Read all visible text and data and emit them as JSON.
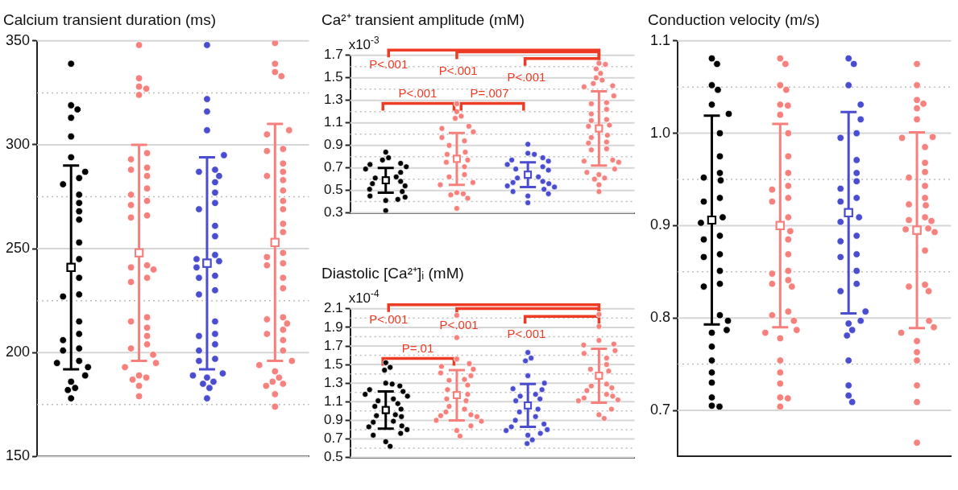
{
  "chart_data": [
    {
      "type": "scatter",
      "title": "Calcium transient duration (ms)",
      "categories": [
        null,
        null,
        null,
        null
      ],
      "ylim": [
        150,
        350
      ],
      "yticks": [
        150,
        {
          "value": 175,
          "label": null
        },
        200,
        {
          "value": 225,
          "label": null
        },
        250,
        {
          "value": 275,
          "label": null
        },
        300,
        {
          "value": 325,
          "label": null
        },
        350
      ],
      "grid": "y",
      "legend": false,
      "marker": "circle",
      "series": [
        {
          "colors": [
            "#000000",
            "#f7807c",
            "#4a4dd0",
            "#f4827f"
          ],
          "values": [
            339,
            348,
            348,
            349
          ]
        },
        {
          "colors": [
            "#000000",
            "#f7807c",
            "#4a4dd0",
            "#f4827f"
          ],
          "values": [
            319,
            332,
            322,
            339
          ]
        },
        {
          "colors": [
            "#000000",
            "#f7807c",
            "#4a4dd0",
            "#f4827f"
          ],
          "values": [
            317,
            328,
            316,
            335
          ]
        },
        {
          "colors": [
            "#000000",
            "#f7807c",
            "#4a4dd0",
            "#f4827f"
          ],
          "values": [
            313,
            327,
            307,
            333
          ]
        },
        {
          "colors": [
            "#000000",
            "#f7807c",
            "#4a4dd0",
            "#f4827f"
          ],
          "values": [
            304,
            324,
            295,
            307
          ]
        },
        {
          "colors": [
            "#000000",
            "#f7807c",
            "#4a4dd0",
            "#f4827f"
          ],
          "values": [
            294,
            296,
            288,
            305
          ]
        },
        {
          "colors": [
            "#000000",
            "#f7807c",
            "#4a4dd0",
            "#f4827f"
          ],
          "values": [
            287,
            293,
            287,
            298
          ]
        },
        {
          "colors": [
            "#000000",
            "#f7807c",
            "#4a4dd0",
            "#f4827f"
          ],
          "values": [
            284,
            289,
            285,
            297
          ]
        },
        {
          "colors": [
            "#000000",
            "#f7807c",
            "#4a4dd0",
            "#f4827f"
          ],
          "values": [
            281,
            288,
            282,
            291
          ]
        },
        {
          "colors": [
            "#000000",
            "#f7807c",
            "#4a4dd0",
            "#f4827f"
          ],
          "values": [
            276,
            285,
            277,
            287
          ]
        },
        {
          "colors": [
            "#000000",
            "#f7807c",
            "#4a4dd0",
            "#f4827f"
          ],
          "values": [
            272,
            279,
            272,
            285
          ]
        },
        {
          "colors": [
            "#000000",
            "#f7807c",
            "#4a4dd0",
            "#f4827f"
          ],
          "values": [
            268,
            276,
            269,
            283
          ]
        },
        {
          "colors": [
            "#000000",
            "#f7807c",
            "#4a4dd0",
            "#f4827f"
          ],
          "values": [
            264,
            273,
            261,
            278
          ]
        },
        {
          "colors": [
            "#000000",
            "#f7807c",
            "#4a4dd0",
            "#f4827f"
          ],
          "values": [
            253,
            271,
            256,
            273
          ]
        },
        {
          "colors": [
            "#000000",
            "#f7807c",
            "#4a4dd0",
            "#f4827f"
          ],
          "values": [
            245,
            266,
            247,
            269
          ]
        },
        {
          "colors": [
            "#000000",
            "#f7807c",
            "#4a4dd0",
            "#f4827f"
          ],
          "values": [
            null,
            265,
            245,
            262
          ]
        },
        {
          "colors": [
            "#000000",
            "#f7807c",
            "#4a4dd0",
            "#f4827f"
          ],
          "values": [
            236,
            null,
            244,
            258
          ]
        },
        {
          "colors": [
            "#000000",
            "#f7807c",
            "#4a4dd0",
            "#f4827f"
          ],
          "values": [
            228,
            242,
            241,
            248
          ]
        },
        {
          "colors": [
            "#000000",
            "#f7807c",
            "#4a4dd0",
            "#f4827f"
          ],
          "values": [
            227,
            241,
            237,
            246
          ]
        },
        {
          "colors": [
            "#000000",
            "#f7807c",
            "#4a4dd0",
            "#f4827f"
          ],
          "values": [
            215,
            240,
            236,
            243
          ]
        },
        {
          "colors": [
            "#000000",
            "#f7807c",
            "#4a4dd0",
            "#f4827f"
          ],
          "values": [
            209,
            236,
            230,
            242
          ]
        },
        {
          "colors": [
            "#000000",
            "#f7807c",
            "#4a4dd0",
            "#f4827f"
          ],
          "values": [
            206,
            234,
            228,
            236
          ]
        },
        {
          "colors": [
            "#000000",
            "#f7807c",
            "#4a4dd0",
            "#f4827f"
          ],
          "values": [
            202,
            217,
            215,
            231
          ]
        },
        {
          "colors": [
            "#000000",
            "#f7807c",
            "#4a4dd0",
            "#f4827f"
          ],
          "values": [
            201,
            215,
            209,
            217
          ]
        },
        {
          "colors": [
            "#000000",
            "#f7807c",
            "#4a4dd0",
            "#f4827f"
          ],
          "values": [
            196,
            212,
            208,
            216
          ]
        },
        {
          "colors": [
            "#000000",
            "#f7807c",
            "#4a4dd0",
            "#f4827f"
          ],
          "values": [
            195,
            208,
            204,
            214
          ]
        },
        {
          "colors": [
            "#000000",
            "#f7807c",
            "#4a4dd0",
            "#f4827f"
          ],
          "values": [
            193,
            204,
            201,
            211
          ]
        },
        {
          "colors": [
            "#000000",
            "#f7807c",
            "#4a4dd0",
            "#f4827f"
          ],
          "values": [
            189,
            202,
            197,
            209
          ]
        },
        {
          "colors": [
            "#000000",
            "#f7807c",
            "#4a4dd0",
            "#f4827f"
          ],
          "values": [
            186,
            199,
            196,
            206
          ]
        },
        {
          "colors": [
            "#000000",
            "#f7807c",
            "#4a4dd0",
            "#f4827f"
          ],
          "values": [
            183,
            195,
            190,
            201
          ]
        },
        {
          "colors": [
            "#000000",
            "#f7807c",
            "#4a4dd0",
            "#f4827f"
          ],
          "values": [
            182,
            193,
            189,
            196
          ]
        },
        {
          "colors": [
            "#000000",
            "#f7807c",
            "#4a4dd0",
            "#f4827f"
          ],
          "values": [
            178,
            189,
            188,
            194
          ]
        },
        {
          "colors": [
            "#000000",
            "#f7807c",
            "#4a4dd0",
            "#f4827f"
          ],
          "values": [
            null,
            188,
            186,
            191
          ]
        },
        {
          "colors": [
            "#000000",
            "#f7807c",
            "#4a4dd0",
            "#f4827f"
          ],
          "values": [
            null,
            187,
            185,
            188
          ]
        },
        {
          "colors": [
            "#000000",
            "#f7807c",
            "#4a4dd0",
            "#f4827f"
          ],
          "values": [
            null,
            184,
            183,
            186
          ]
        },
        {
          "colors": [
            "#000000",
            "#f7807c",
            "#4a4dd0",
            "#f4827f"
          ],
          "values": [
            null,
            179,
            178,
            185
          ]
        },
        {
          "colors": [
            "#000000",
            "#f7807c",
            "#4a4dd0",
            "#f4827f"
          ],
          "values": [
            null,
            null,
            null,
            184
          ]
        },
        {
          "colors": [
            "#000000",
            "#f7807c",
            "#4a4dd0",
            "#f4827f"
          ],
          "values": [
            null,
            null,
            null,
            180
          ]
        },
        {
          "colors": [
            "#000000",
            "#f7807c",
            "#4a4dd0",
            "#f4827f"
          ],
          "values": [
            null,
            null,
            null,
            174
          ]
        },
        {
          "colors": [
            "#000000",
            "#f7807c",
            "#4a4dd0",
            "#f7807c"
          ],
          "marker": "square",
          "values": [
            241,
            248,
            243,
            253
          ],
          "errors": [
            49,
            52,
            51,
            57
          ]
        }
      ]
    },
    {
      "type": "scatter",
      "title": "Ca²⁺ transient amplitude (mM)",
      "ylabel": "x10$^{-3}$",
      "categories": [
        null,
        null,
        null,
        null
      ],
      "ylim": [
        0.3,
        1.7
      ],
      "yticks": [
        0.3,
        {
          "value": 0.4,
          "label": null
        },
        0.5,
        {
          "value": 0.6,
          "label": null
        },
        0.7,
        {
          "value": 0.8,
          "label": null
        },
        0.9,
        {
          "value": 1.0,
          "label": null
        },
        1.1,
        {
          "value": 1.2,
          "label": null
        },
        1.3,
        {
          "value": 1.4,
          "label": null
        },
        1.5,
        {
          "value": 1.6,
          "label": null
        },
        1.7
      ],
      "grid": "y",
      "legend": false,
      "marker": "circle",
      "annotations": [
        "P<.001",
        "P<.001",
        "P<.001",
        "P<.001",
        "P=.007"
      ],
      "series": [
        {
          "colors": [
            "#000000",
            "#f7807c",
            "#4a4dd0",
            "#f4827f"
          ],
          "values": [
            0.84,
            1.27,
            0.91,
            1.63
          ]
        },
        {
          "colors": [
            "#000000",
            "#f7807c",
            "#4a4dd0",
            "#f4827f"
          ],
          "values": [
            0.79,
            1.2,
            0.83,
            1.62
          ]
        },
        {
          "colors": [
            "#000000",
            "#f7807c",
            "#4a4dd0",
            "#f4827f"
          ],
          "values": [
            0.77,
            1.16,
            0.82,
            1.58
          ]
        },
        {
          "colors": [
            "#000000",
            "#f7807c",
            "#4a4dd0",
            "#f4827f"
          ],
          "values": [
            0.74,
            1.14,
            0.79,
            1.54
          ]
        },
        {
          "colors": [
            "#000000",
            "#f7807c",
            "#4a4dd0",
            "#f4827f"
          ],
          "values": [
            0.73,
            1.07,
            0.77,
            1.5
          ]
        },
        {
          "colors": [
            "#000000",
            "#f7807c",
            "#4a4dd0",
            "#f4827f"
          ],
          "values": [
            0.71,
            1.05,
            0.76,
            1.48
          ]
        },
        {
          "colors": [
            "#000000",
            "#f7807c",
            "#4a4dd0",
            "#f4827f"
          ],
          "values": [
            0.69,
            1.02,
            0.73,
            1.45
          ]
        },
        {
          "colors": [
            "#000000",
            "#f7807c",
            "#4a4dd0",
            "#f4827f"
          ],
          "values": [
            0.66,
            0.97,
            0.71,
            1.43
          ]
        },
        {
          "colors": [
            "#000000",
            "#f7807c",
            "#4a4dd0",
            "#f4827f"
          ],
          "values": [
            0.62,
            0.94,
            0.69,
            1.42
          ]
        },
        {
          "colors": [
            "#000000",
            "#f7807c",
            "#4a4dd0",
            "#f4827f"
          ],
          "values": [
            0.61,
            0.9,
            0.68,
            1.34
          ]
        },
        {
          "colors": [
            "#000000",
            "#f7807c",
            "#4a4dd0",
            "#f4827f"
          ],
          "values": [
            0.58,
            0.84,
            null,
            1.28
          ]
        },
        {
          "colors": [
            "#000000",
            "#f7807c",
            "#4a4dd0",
            "#f4827f"
          ],
          "values": [
            0.56,
            0.82,
            0.62,
            1.27
          ]
        },
        {
          "colors": [
            "#000000",
            "#f7807c",
            "#4a4dd0",
            "#f4827f"
          ],
          "values": [
            0.54,
            0.77,
            0.61,
            1.22
          ]
        },
        {
          "colors": [
            "#000000",
            "#f7807c",
            "#4a4dd0",
            "#f4827f"
          ],
          "values": [
            0.51,
            0.75,
            0.58,
            1.18
          ]
        },
        {
          "colors": [
            "#000000",
            "#f7807c",
            "#4a4dd0",
            "#f4827f"
          ],
          "values": [
            0.49,
            0.71,
            0.57,
            1.13
          ]
        },
        {
          "colors": [
            "#000000",
            "#f7807c",
            "#4a4dd0",
            "#f4827f"
          ],
          "values": [
            0.45,
            0.64,
            0.56,
            1.12
          ]
        },
        {
          "colors": [
            "#000000",
            "#f7807c",
            "#4a4dd0",
            "#f4827f"
          ],
          "values": [
            0.44,
            0.62,
            0.54,
            1.08
          ]
        },
        {
          "colors": [
            "#000000",
            "#f7807c",
            "#4a4dd0",
            "#f4827f"
          ],
          "values": [
            0.42,
            0.57,
            0.53,
            1.07
          ]
        },
        {
          "colors": [
            "#000000",
            "#f7807c",
            "#4a4dd0",
            "#f4827f"
          ],
          "values": [
            0.41,
            0.55,
            0.51,
            0.99
          ]
        },
        {
          "colors": [
            "#000000",
            "#f7807c",
            "#4a4dd0",
            "#f4827f"
          ],
          "values": [
            0.32,
            0.48,
            0.49,
            0.97
          ]
        },
        {
          "colors": [
            "#000000",
            "#f7807c",
            "#4a4dd0",
            "#f4827f"
          ],
          "values": [
            null,
            0.47,
            0.47,
            0.93
          ]
        },
        {
          "colors": [
            "#000000",
            "#f7807c",
            "#4a4dd0",
            "#f4827f"
          ],
          "values": [
            null,
            0.46,
            0.45,
            0.92
          ]
        },
        {
          "colors": [
            "#000000",
            "#f7807c",
            "#4a4dd0",
            "#f4827f"
          ],
          "values": [
            null,
            0.43,
            0.39,
            0.87
          ]
        },
        {
          "colors": [
            "#000000",
            "#f7807c",
            "#4a4dd0",
            "#f4827f"
          ],
          "values": [
            null,
            0.34,
            null,
            0.86
          ]
        },
        {
          "colors": [
            "#000000",
            "#f7807c",
            "#4a4dd0",
            "#f4827f"
          ],
          "values": [
            null,
            null,
            null,
            0.77
          ]
        },
        {
          "colors": [
            "#000000",
            "#f7807c",
            "#4a4dd0",
            "#f4827f"
          ],
          "values": [
            null,
            null,
            null,
            0.76
          ]
        },
        {
          "colors": [
            "#000000",
            "#f7807c",
            "#4a4dd0",
            "#f4827f"
          ],
          "values": [
            null,
            null,
            null,
            0.75
          ]
        },
        {
          "colors": [
            "#000000",
            "#f7807c",
            "#4a4dd0",
            "#f4827f"
          ],
          "values": [
            null,
            null,
            null,
            0.69
          ]
        },
        {
          "colors": [
            "#000000",
            "#f7807c",
            "#4a4dd0",
            "#f4827f"
          ],
          "values": [
            null,
            null,
            null,
            0.66
          ]
        },
        {
          "colors": [
            "#000000",
            "#f7807c",
            "#4a4dd0",
            "#f4827f"
          ],
          "values": [
            null,
            null,
            null,
            0.64
          ]
        },
        {
          "colors": [
            "#000000",
            "#f7807c",
            "#4a4dd0",
            "#f4827f"
          ],
          "values": [
            null,
            null,
            null,
            0.61
          ]
        },
        {
          "colors": [
            "#000000",
            "#f7807c",
            "#4a4dd0",
            "#f4827f"
          ],
          "values": [
            null,
            null,
            null,
            0.6
          ]
        },
        {
          "colors": [
            "#000000",
            "#f7807c",
            "#4a4dd0",
            "#f4827f"
          ],
          "values": [
            null,
            null,
            null,
            0.55
          ]
        },
        {
          "colors": [
            "#000000",
            "#f7807c",
            "#4a4dd0",
            "#f4827f"
          ],
          "values": [
            null,
            null,
            null,
            0.49
          ]
        },
        {
          "colors": [
            "#000000",
            "#f7807c",
            "#4a4dd0",
            "#f7807c"
          ],
          "marker": "square",
          "values": [
            0.59,
            0.78,
            0.64,
            1.05
          ],
          "errors": [
            0.11,
            0.23,
            0.11,
            0.33
          ]
        }
      ]
    },
    {
      "type": "scatter",
      "title": "Diastolic [Ca²⁺]ᵢ (mM)",
      "ylabel": "x10$^{-4}$",
      "categories": [
        null,
        null,
        null,
        null
      ],
      "ylim": [
        0.5,
        2.1
      ],
      "yticks": [
        0.5,
        {
          "value": 0.6,
          "label": null
        },
        0.7,
        {
          "value": 0.8,
          "label": null
        },
        0.9,
        {
          "value": 1.0,
          "label": null
        },
        1.1,
        {
          "value": 1.2,
          "label": null
        },
        1.3,
        {
          "value": 1.4,
          "label": null
        },
        1.5,
        {
          "value": 1.6,
          "label": null
        },
        1.7,
        {
          "value": 1.8,
          "label": null
        },
        1.9,
        {
          "value": 2.0,
          "label": null
        },
        2.1
      ],
      "grid": "y",
      "legend": false,
      "marker": "circle",
      "annotations": [
        "P<.001",
        "P<.001",
        "P<.001",
        "P=.01"
      ],
      "series": [
        {
          "colors": [
            "#000000",
            "#f7807c",
            "#4a4dd0",
            "#f4827f"
          ],
          "values": [
            1.52,
            2.03,
            1.63,
            2.04
          ]
        },
        {
          "colors": [
            "#000000",
            "#f7807c",
            "#4a4dd0",
            "#f4827f"
          ],
          "values": [
            1.47,
            1.79,
            1.57,
            1.91
          ]
        },
        {
          "colors": [
            "#000000",
            "#f7807c",
            "#4a4dd0",
            "#f4827f"
          ],
          "values": [
            1.44,
            1.56,
            1.54,
            1.76
          ]
        },
        {
          "colors": [
            "#000000",
            "#f7807c",
            "#4a4dd0",
            "#f4827f"
          ],
          "values": [
            1.3,
            1.51,
            1.38,
            1.72
          ]
        },
        {
          "colors": [
            "#000000",
            "#f7807c",
            "#4a4dd0",
            "#f4827f"
          ],
          "values": [
            1.29,
            1.48,
            1.3,
            1.71
          ]
        },
        {
          "colors": [
            "#000000",
            "#f7807c",
            "#4a4dd0",
            "#f4827f"
          ],
          "values": [
            1.27,
            1.45,
            1.24,
            1.65
          ]
        },
        {
          "colors": [
            "#000000",
            "#f7807c",
            "#4a4dd0",
            "#f4827f"
          ],
          "values": [
            1.23,
            1.41,
            1.23,
            1.62
          ]
        },
        {
          "colors": [
            "#000000",
            "#f7807c",
            "#4a4dd0",
            "#f4827f"
          ],
          "values": [
            1.21,
            1.38,
            1.18,
            1.57
          ]
        },
        {
          "colors": [
            "#000000",
            "#f7807c",
            "#4a4dd0",
            "#f4827f"
          ],
          "values": [
            1.18,
            1.34,
            1.16,
            1.5
          ]
        },
        {
          "colors": [
            "#000000",
            "#f7807c",
            "#4a4dd0",
            "#f4827f"
          ],
          "values": [
            1.16,
            1.33,
            1.13,
            1.45
          ]
        },
        {
          "colors": [
            "#000000",
            "#f7807c",
            "#4a4dd0",
            "#f4827f"
          ],
          "values": [
            1.13,
            1.28,
            1.11,
            1.43
          ]
        },
        {
          "colors": [
            "#000000",
            "#f7807c",
            "#4a4dd0",
            "#f4827f"
          ],
          "values": [
            1.11,
            1.23,
            null,
            null
          ]
        },
        {
          "colors": [
            "#000000",
            "#f7807c",
            "#4a4dd0",
            "#f4827f"
          ],
          "values": [
            1.08,
            1.18,
            1.02,
            1.29
          ]
        },
        {
          "colors": [
            "#000000",
            "#f7807c",
            "#4a4dd0",
            "#f4827f"
          ],
          "values": [
            1.05,
            null,
            0.99,
            1.27
          ]
        },
        {
          "colors": [
            "#000000",
            "#f7807c",
            "#4a4dd0",
            "#f4827f"
          ],
          "values": [
            1.02,
            1.13,
            0.94,
            1.25
          ]
        },
        {
          "colors": [
            "#000000",
            "#f7807c",
            "#4a4dd0",
            "#f4827f"
          ],
          "values": [
            0.96,
            1.11,
            0.9,
            1.22
          ]
        },
        {
          "colors": [
            "#000000",
            "#f7807c",
            "#4a4dd0",
            "#f4827f"
          ],
          "values": [
            0.95,
            1.05,
            0.86,
            1.18
          ]
        },
        {
          "colors": [
            "#000000",
            "#f7807c",
            "#4a4dd0",
            "#f4827f"
          ],
          "values": [
            0.94,
            1.02,
            0.83,
            1.16
          ]
        },
        {
          "colors": [
            "#000000",
            "#f7807c",
            "#4a4dd0",
            "#f4827f"
          ],
          "values": [
            0.89,
            0.99,
            0.8,
            1.14
          ]
        },
        {
          "colors": [
            "#000000",
            "#f7807c",
            "#4a4dd0",
            "#f4827f"
          ],
          "values": [
            0.88,
            0.96,
            0.79,
            1.12
          ]
        },
        {
          "colors": [
            "#000000",
            "#f7807c",
            "#4a4dd0",
            "#f4827f"
          ],
          "values": [
            0.84,
            0.95,
            0.76,
            1.11
          ]
        },
        {
          "colors": [
            "#000000",
            "#f7807c",
            "#4a4dd0",
            "#f4827f"
          ],
          "values": [
            0.83,
            0.94,
            0.74,
            1.02
          ]
        },
        {
          "colors": [
            "#000000",
            "#f7807c",
            "#4a4dd0",
            "#f4827f"
          ],
          "values": [
            0.8,
            0.9,
            0.69,
            0.96
          ]
        },
        {
          "colors": [
            "#000000",
            "#f7807c",
            "#4a4dd0",
            "#f4827f"
          ],
          "values": [
            0.76,
            0.89,
            0.65,
            0.92
          ]
        },
        {
          "colors": [
            "#000000",
            "#f7807c",
            "#4a4dd0",
            "#f4827f"
          ],
          "values": [
            0.74,
            0.84,
            null,
            null
          ]
        },
        {
          "colors": [
            "#000000",
            "#f7807c",
            "#4a4dd0",
            "#f4827f"
          ],
          "values": [
            0.67,
            0.79,
            null,
            null
          ]
        },
        {
          "colors": [
            "#000000",
            "#f7807c",
            "#4a4dd0",
            "#f4827f"
          ],
          "values": [
            0.62,
            0.73,
            null,
            null
          ]
        },
        {
          "colors": [
            "#000000",
            "#f7807c",
            "#4a4dd0",
            "#f7807c"
          ],
          "marker": "square",
          "values": [
            1.01,
            1.17,
            1.06,
            1.38
          ],
          "errors": [
            0.2,
            0.27,
            0.23,
            0.29
          ]
        }
      ]
    },
    {
      "type": "scatter",
      "title": "Conduction velocity (m/s)",
      "categories": [
        null,
        null,
        null,
        null
      ],
      "ylim": [
        0.65,
        1.1
      ],
      "yticks": [
        0.7,
        {
          "value": 0.75,
          "label": null
        },
        0.8,
        {
          "value": 0.85,
          "label": null
        },
        0.9,
        {
          "value": 0.95,
          "label": null
        },
        {
          "value": 1.0,
          "label": "1.0"
        },
        {
          "value": 1.05,
          "label": null
        },
        1.1
      ],
      "grid": "y",
      "legend": false,
      "marker": "circle",
      "series": [
        {
          "colors": [
            "#000000",
            "#f7807c",
            "#4a4dd0",
            "#f4827f"
          ],
          "values": [
            1.081,
            1.081,
            1.081,
            1.075
          ]
        },
        {
          "colors": [
            "#000000",
            "#f7807c",
            "#4a4dd0",
            "#f4827f"
          ],
          "values": [
            1.075,
            1.075,
            1.075,
            1.052
          ]
        },
        {
          "colors": [
            "#000000",
            "#f7807c",
            "#4a4dd0",
            "#f4827f"
          ],
          "values": [
            1.052,
            1.052,
            1.052,
            1.036
          ]
        },
        {
          "colors": [
            "#000000",
            "#f7807c",
            "#4a4dd0",
            "#f4827f"
          ],
          "values": [
            1.047,
            1.047,
            1.031,
            1.032
          ]
        },
        {
          "colors": [
            "#000000",
            "#f7807c",
            "#4a4dd0",
            "#f4827f"
          ],
          "values": [
            1.031,
            1.031,
            1.015,
            1.027
          ]
        },
        {
          "colors": [
            "#000000",
            "#f7807c",
            "#4a4dd0",
            "#f4827f"
          ],
          "values": [
            1.021,
            1.03,
            1.0,
            1.015
          ]
        },
        {
          "colors": [
            "#000000",
            "#f7807c",
            "#4a4dd0",
            "#f4827f"
          ],
          "values": [
            1.0,
            1.02,
            0.995,
            0.996
          ]
        },
        {
          "colors": [
            "#000000",
            "#f7807c",
            "#4a4dd0",
            "#f4827f"
          ],
          "values": [
            0.975,
            1.0,
            0.971,
            0.995
          ]
        },
        {
          "colors": [
            "#000000",
            "#f7807c",
            "#4a4dd0",
            "#f4827f"
          ],
          "values": [
            0.957,
            0.975,
            0.957,
            0.985
          ]
        },
        {
          "colors": [
            "#000000",
            "#f7807c",
            "#4a4dd0",
            "#f4827f"
          ],
          "values": [
            0.952,
            0.957,
            0.948,
            0.968
          ]
        },
        {
          "colors": [
            "#000000",
            "#f7807c",
            "#4a4dd0",
            "#f4827f"
          ],
          "values": [
            0.949,
            0.943,
            0.94,
            0.958
          ]
        },
        {
          "colors": [
            "#000000",
            "#f7807c",
            "#4a4dd0",
            "#f4827f"
          ],
          "values": [
            0.93,
            0.939,
            0.93,
            0.952
          ]
        },
        {
          "colors": [
            "#000000",
            "#f7807c",
            "#4a4dd0",
            "#f4827f"
          ],
          "values": [
            0.926,
            0.93,
            0.926,
            0.943
          ]
        },
        {
          "colors": [
            "#000000",
            "#f7807c",
            "#4a4dd0",
            "#f4827f"
          ],
          "values": [
            0.909,
            0.926,
            0.909,
            0.93
          ]
        },
        {
          "colors": [
            "#000000",
            "#f7807c",
            "#4a4dd0",
            "#f4827f"
          ],
          "values": [
            0.903,
            0.909,
            0.904,
            0.923
          ]
        },
        {
          "colors": [
            "#000000",
            "#f7807c",
            "#4a4dd0",
            "#f4827f"
          ],
          "values": [
            0.889,
            0.894,
            0.889,
            0.922
          ]
        },
        {
          "colors": [
            "#000000",
            "#f7807c",
            "#4a4dd0",
            "#f4827f"
          ],
          "values": [
            0.885,
            0.885,
            0.883,
            0.909
          ]
        },
        {
          "colors": [
            "#000000",
            "#f7807c",
            "#4a4dd0",
            "#f4827f"
          ],
          "values": [
            0.869,
            0.869,
            0.869,
            0.906
          ]
        },
        {
          "colors": [
            "#000000",
            "#f7807c",
            "#4a4dd0",
            "#f4827f"
          ],
          "values": [
            0.866,
            0.851,
            0.866,
            0.905
          ]
        },
        {
          "colors": [
            "#000000",
            "#f7807c",
            "#4a4dd0",
            "#f4827f"
          ],
          "values": [
            0.851,
            0.848,
            0.851,
            0.897
          ]
        },
        {
          "colors": [
            "#000000",
            "#f7807c",
            "#4a4dd0",
            "#f4827f"
          ],
          "values": [
            0.837,
            0.841,
            0.837,
            0.896
          ]
        },
        {
          "colors": [
            "#000000",
            "#f7807c",
            "#4a4dd0",
            "#f4827f"
          ],
          "values": [
            0.834,
            0.837,
            0.829,
            0.893
          ]
        },
        {
          "colors": [
            "#000000",
            "#f7807c",
            "#4a4dd0",
            "#f4827f"
          ],
          "values": [
            0.803,
            0.834,
            0.807,
            0.873
          ]
        },
        {
          "colors": [
            "#000000",
            "#f7807c",
            "#4a4dd0",
            "#f4827f"
          ],
          "values": [
            0.797,
            0.807,
            0.797,
            0.836
          ]
        },
        {
          "colors": [
            "#000000",
            "#f7807c",
            "#4a4dd0",
            "#f4827f"
          ],
          "values": [
            0.787,
            0.803,
            0.794,
            0.834
          ]
        },
        {
          "colors": [
            "#000000",
            "#f7807c",
            "#4a4dd0",
            "#f4827f"
          ],
          "values": [
            0.784,
            0.797,
            0.787,
            0.829
          ]
        },
        {
          "colors": [
            "#000000",
            "#f7807c",
            "#4a4dd0",
            "#f4827f"
          ],
          "values": [
            0.769,
            0.787,
            0.781,
            0.797
          ]
        },
        {
          "colors": [
            "#000000",
            "#f7807c",
            "#4a4dd0",
            "#f4827f"
          ],
          "values": [
            0.754,
            0.784,
            0.754,
            0.79
          ]
        },
        {
          "colors": [
            "#000000",
            "#f7807c",
            "#4a4dd0",
            "#f4827f"
          ],
          "values": [
            0.741,
            0.778,
            0.727,
            0.784
          ]
        },
        {
          "colors": [
            "#000000",
            "#f7807c",
            "#4a4dd0",
            "#f4827f"
          ],
          "values": [
            0.73,
            0.754,
            0.716,
            0.775
          ]
        },
        {
          "colors": [
            "#000000",
            "#f7807c",
            "#4a4dd0",
            "#f4827f"
          ],
          "values": [
            0.714,
            0.741,
            0.709,
            0.763
          ]
        },
        {
          "colors": [
            "#000000",
            "#f7807c",
            "#4a4dd0",
            "#f4827f"
          ],
          "values": [
            0.705,
            0.729,
            null,
            0.754
          ]
        },
        {
          "colors": [
            "#000000",
            "#f7807c",
            "#4a4dd0",
            "#f4827f"
          ],
          "values": [
            0.704,
            0.714,
            null,
            0.727
          ]
        },
        {
          "colors": [
            "#000000",
            "#f7807c",
            "#4a4dd0",
            "#f4827f"
          ],
          "values": [
            null,
            0.713,
            null,
            0.709
          ]
        },
        {
          "colors": [
            "#000000",
            "#f7807c",
            "#4a4dd0",
            "#f4827f"
          ],
          "values": [
            null,
            0.704,
            null,
            0.665
          ]
        },
        {
          "colors": [
            "#000000",
            "#f7807c",
            "#4a4dd0",
            "#f7807c"
          ],
          "marker": "square",
          "values": [
            0.906,
            0.9,
            0.914,
            0.895
          ],
          "errors": [
            0.113,
            0.11,
            0.109,
            0.106
          ]
        }
      ]
    }
  ]
}
